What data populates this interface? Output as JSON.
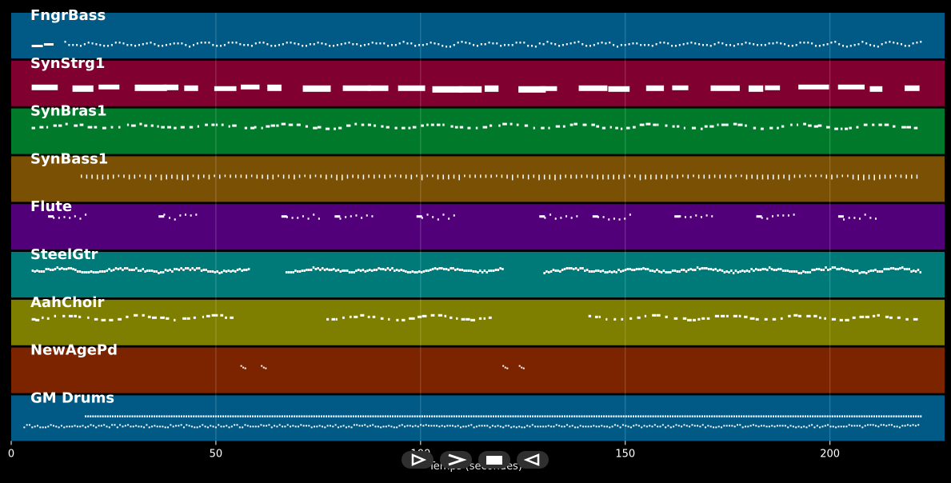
{
  "chart_data": {
    "type": "piano-roll",
    "xlabel": "Temps (secondes)",
    "xlim": [
      0,
      228
    ],
    "xticks": [
      0,
      50,
      100,
      150,
      200
    ],
    "grid": true,
    "tracks": [
      {
        "name": "FngrBass",
        "color": "#005a85",
        "pattern": "bass",
        "segments": [
          [
            5,
            222
          ]
        ]
      },
      {
        "name": "SynStrg1",
        "color": "#80002f",
        "pattern": "long",
        "segments": [
          [
            5,
            222
          ]
        ]
      },
      {
        "name": "SynBras1",
        "color": "#007a2a",
        "pattern": "melody",
        "segments": [
          [
            5,
            54
          ],
          [
            57,
            120
          ],
          [
            120,
            222
          ]
        ]
      },
      {
        "name": "SynBass1",
        "color": "#7a5005",
        "pattern": "ticks",
        "segments": [
          [
            17,
            222
          ]
        ]
      },
      {
        "name": "Flute",
        "color": "#520079",
        "pattern": "phrases",
        "phrases": [
          9,
          36,
          66,
          79,
          99,
          129,
          142,
          162,
          182,
          202
        ]
      },
      {
        "name": "SteelGtr",
        "color": "#007a79",
        "pattern": "dense",
        "segments": [
          [
            5,
            58
          ],
          [
            67,
            120
          ],
          [
            130,
            222
          ]
        ]
      },
      {
        "name": "AahChoir",
        "color": "#7e7e00",
        "pattern": "melody",
        "segments": [
          [
            5,
            54
          ],
          [
            77,
            117
          ],
          [
            141,
            222
          ]
        ]
      },
      {
        "name": "NewAgePd",
        "color": "#7c2300",
        "pattern": "sparse",
        "notes": [
          56,
          61,
          120,
          124
        ]
      },
      {
        "name": "GM Drums",
        "color": "#005a85",
        "pattern": "drums",
        "segments": [
          [
            3,
            222
          ]
        ]
      }
    ]
  },
  "controls": {
    "play_label": "play",
    "forward_label": "forward",
    "stop_label": "stop",
    "back_label": "back"
  }
}
